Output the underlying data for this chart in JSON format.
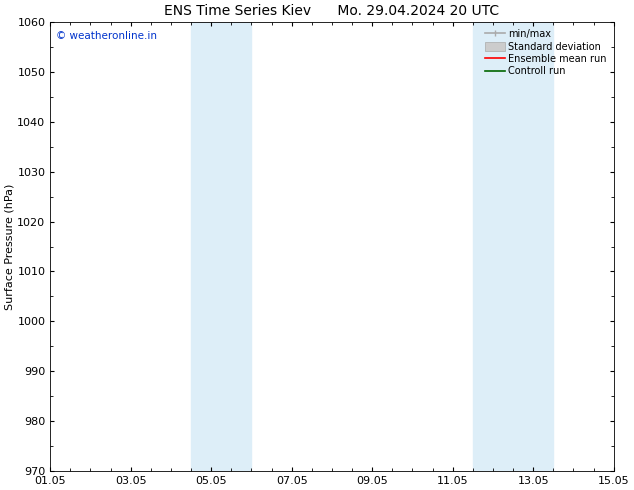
{
  "title_left": "ENS Time Series Kiev",
  "title_right": "Mo. 29.04.2024 20 UTC",
  "ylabel": "Surface Pressure (hPa)",
  "ylim": [
    970,
    1060
  ],
  "yticks": [
    970,
    980,
    990,
    1000,
    1010,
    1020,
    1030,
    1040,
    1050,
    1060
  ],
  "xtick_labels": [
    "01.05",
    "03.05",
    "05.05",
    "07.05",
    "09.05",
    "11.05",
    "13.05",
    "15.05"
  ],
  "xtick_positions": [
    0,
    2,
    4,
    6,
    8,
    10,
    12,
    14
  ],
  "xlim": [
    0,
    14
  ],
  "shaded_bands": [
    {
      "x_start": 3.5,
      "x_end": 5.0
    },
    {
      "x_start": 10.5,
      "x_end": 12.5
    }
  ],
  "shaded_color": "#ddeef8",
  "watermark_text": "© weatheronline.in",
  "watermark_color": "#0033cc",
  "legend_items": [
    {
      "label": "min/max",
      "color": "#aaaaaa",
      "type": "minmax"
    },
    {
      "label": "Standard deviation",
      "color": "#cccccc",
      "type": "std"
    },
    {
      "label": "Ensemble mean run",
      "color": "#ff0000",
      "type": "line"
    },
    {
      "label": "Controll run",
      "color": "#006600",
      "type": "line"
    }
  ],
  "bg_color": "#ffffff",
  "tick_label_fontsize": 8,
  "title_fontsize": 10,
  "ylabel_fontsize": 8
}
